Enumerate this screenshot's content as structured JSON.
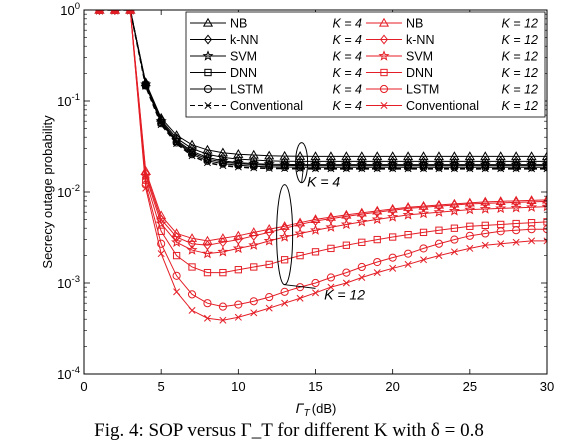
{
  "chart_data": {
    "type": "line",
    "xlabel": "Γ",
    "xlabel_sub": "T",
    "xlabel_unit": "(dB)",
    "ylabel": "Secrecy outage probability",
    "xlim": [
      0,
      30
    ],
    "ylim": [
      0.0001,
      1
    ],
    "yscale": "log",
    "xticks": [
      "0",
      "5",
      "10",
      "15",
      "20",
      "25",
      "30"
    ],
    "yticks": [
      {
        "base": "10",
        "exp": "0"
      },
      {
        "base": "10",
        "exp": "-1"
      },
      {
        "base": "10",
        "exp": "-2"
      },
      {
        "base": "10",
        "exp": "-3"
      },
      {
        "base": "10",
        "exp": "-4"
      }
    ],
    "legend_position": "top-right",
    "x": [
      1,
      2,
      3,
      4,
      5,
      6,
      7,
      8,
      9,
      10,
      11,
      12,
      13,
      14,
      15,
      16,
      17,
      18,
      19,
      20,
      21,
      22,
      23,
      24,
      25,
      26,
      27,
      28,
      29,
      30
    ],
    "series": [
      {
        "method": "NB",
        "k": "K = 4",
        "marker": "triangle",
        "color": "#000000",
        "dash": "solid",
        "values": [
          1,
          1,
          1,
          0.16,
          0.065,
          0.042,
          0.033,
          0.029,
          0.027,
          0.026,
          0.0255,
          0.025,
          0.0248,
          0.0247,
          0.0246,
          0.0246,
          0.0246,
          0.0246,
          0.0246,
          0.0246,
          0.0246,
          0.0246,
          0.0246,
          0.0246,
          0.0246,
          0.0246,
          0.0246,
          0.0246,
          0.0246,
          0.0246
        ]
      },
      {
        "method": "k-NN",
        "k": "K = 4",
        "marker": "diamond",
        "color": "#000000",
        "dash": "solid",
        "values": [
          1,
          1,
          1,
          0.155,
          0.062,
          0.039,
          0.03,
          0.026,
          0.024,
          0.023,
          0.0225,
          0.022,
          0.0218,
          0.0217,
          0.0217,
          0.0217,
          0.0217,
          0.0217,
          0.0217,
          0.0217,
          0.0217,
          0.0217,
          0.0217,
          0.0217,
          0.0217,
          0.0217,
          0.0217,
          0.0217,
          0.0217,
          0.0217
        ]
      },
      {
        "method": "SVM",
        "k": "K = 4",
        "marker": "star",
        "color": "#000000",
        "dash": "solid",
        "values": [
          1,
          1,
          1,
          0.152,
          0.06,
          0.037,
          0.028,
          0.024,
          0.022,
          0.021,
          0.0205,
          0.0202,
          0.0201,
          0.02,
          0.02,
          0.02,
          0.02,
          0.02,
          0.02,
          0.02,
          0.02,
          0.02,
          0.02,
          0.02,
          0.02,
          0.02,
          0.02,
          0.02,
          0.02,
          0.02
        ]
      },
      {
        "method": "DNN",
        "k": "K = 4",
        "marker": "square",
        "color": "#000000",
        "dash": "solid",
        "values": [
          1,
          1,
          1,
          0.15,
          0.058,
          0.036,
          0.027,
          0.023,
          0.0213,
          0.0205,
          0.02,
          0.0197,
          0.0196,
          0.0195,
          0.0195,
          0.0195,
          0.0195,
          0.0195,
          0.0195,
          0.0195,
          0.0195,
          0.0195,
          0.0195,
          0.0195,
          0.0195,
          0.0195,
          0.0195,
          0.0195,
          0.0195,
          0.0195
        ]
      },
      {
        "method": "LSTM",
        "k": "K = 4",
        "marker": "circle",
        "color": "#000000",
        "dash": "solid",
        "values": [
          1,
          1,
          1,
          0.148,
          0.057,
          0.035,
          0.026,
          0.022,
          0.0205,
          0.0197,
          0.0192,
          0.0189,
          0.0188,
          0.0187,
          0.0187,
          0.0187,
          0.0187,
          0.0187,
          0.0187,
          0.0187,
          0.0187,
          0.0187,
          0.0187,
          0.0187,
          0.0187,
          0.0187,
          0.0187,
          0.0187,
          0.0187,
          0.0187
        ]
      },
      {
        "method": "Conventional",
        "k": "K = 4",
        "marker": "x",
        "color": "#000000",
        "dash": "dashed",
        "values": [
          1,
          1,
          1,
          0.145,
          0.055,
          0.034,
          0.025,
          0.021,
          0.0195,
          0.0188,
          0.0184,
          0.0182,
          0.0181,
          0.018,
          0.018,
          0.018,
          0.018,
          0.018,
          0.018,
          0.018,
          0.018,
          0.018,
          0.018,
          0.018,
          0.018,
          0.018,
          0.018,
          0.018,
          0.018,
          0.018
        ]
      },
      {
        "method": "NB",
        "k": "K = 12",
        "marker": "triangle",
        "color": "#e41e26",
        "dash": "solid",
        "values": [
          1,
          1,
          1,
          0.017,
          0.0055,
          0.0035,
          0.0031,
          0.0029,
          0.0031,
          0.0033,
          0.0036,
          0.0039,
          0.0042,
          0.0046,
          0.005,
          0.0053,
          0.0056,
          0.0059,
          0.0062,
          0.0065,
          0.0068,
          0.007,
          0.0072,
          0.0074,
          0.0076,
          0.0078,
          0.0079,
          0.008,
          0.0081,
          0.0082
        ]
      },
      {
        "method": "k-NN",
        "k": "K = 12",
        "marker": "diamond",
        "color": "#e41e26",
        "dash": "solid",
        "values": [
          1,
          1,
          1,
          0.016,
          0.005,
          0.0032,
          0.0027,
          0.0026,
          0.0028,
          0.003,
          0.0033,
          0.0036,
          0.004,
          0.0044,
          0.0048,
          0.0051,
          0.0054,
          0.0057,
          0.006,
          0.0063,
          0.0066,
          0.0068,
          0.007,
          0.0072,
          0.0074,
          0.0075,
          0.0076,
          0.0077,
          0.0078,
          0.0079
        ]
      },
      {
        "method": "SVM",
        "k": "K = 12",
        "marker": "star",
        "color": "#e41e26",
        "dash": "solid",
        "values": [
          1,
          1,
          1,
          0.015,
          0.0045,
          0.0028,
          0.0023,
          0.0021,
          0.0022,
          0.0024,
          0.0026,
          0.0029,
          0.0032,
          0.0035,
          0.0038,
          0.0041,
          0.0044,
          0.0047,
          0.005,
          0.0053,
          0.0056,
          0.0058,
          0.006,
          0.0062,
          0.0064,
          0.0065,
          0.0066,
          0.0067,
          0.0068,
          0.0069
        ]
      },
      {
        "method": "DNN",
        "k": "K = 12",
        "marker": "square",
        "color": "#e41e26",
        "dash": "solid",
        "values": [
          1,
          1,
          1,
          0.0135,
          0.0037,
          0.002,
          0.0015,
          0.0013,
          0.0013,
          0.0014,
          0.0015,
          0.0016,
          0.0018,
          0.002,
          0.0022,
          0.0024,
          0.0026,
          0.0028,
          0.003,
          0.0032,
          0.0034,
          0.0036,
          0.0038,
          0.004,
          0.0042,
          0.0043,
          0.0044,
          0.0045,
          0.0046,
          0.0047
        ]
      },
      {
        "method": "LSTM",
        "k": "K = 12",
        "marker": "circle",
        "color": "#e41e26",
        "dash": "solid",
        "values": [
          1,
          1,
          1,
          0.012,
          0.0027,
          0.0012,
          0.00075,
          0.0006,
          0.00055,
          0.00058,
          0.00063,
          0.0007,
          0.0008,
          0.0009,
          0.001,
          0.00115,
          0.0013,
          0.0015,
          0.0017,
          0.0019,
          0.0021,
          0.0024,
          0.0027,
          0.003,
          0.0033,
          0.0035,
          0.0037,
          0.0038,
          0.0039,
          0.0039
        ]
      },
      {
        "method": "Conventional",
        "k": "K = 12",
        "marker": "x",
        "color": "#e41e26",
        "dash": "solid",
        "values": [
          1,
          1,
          1,
          0.011,
          0.0021,
          0.0008,
          0.0005,
          0.00041,
          0.00039,
          0.00042,
          0.00047,
          0.00053,
          0.0006,
          0.00068,
          0.00078,
          0.0009,
          0.001,
          0.00115,
          0.0013,
          0.00145,
          0.0016,
          0.0018,
          0.002,
          0.0022,
          0.0024,
          0.0026,
          0.0027,
          0.0028,
          0.0029,
          0.0029
        ]
      }
    ],
    "annotations": [
      {
        "text": "K = 4",
        "x": 14.2,
        "y": 0.013
      },
      {
        "text": "K = 12",
        "x": 15.3,
        "y": 0.00075
      }
    ]
  },
  "caption": "Fig. 4: SOP versus Γ_T for different K with δ = 0.8"
}
